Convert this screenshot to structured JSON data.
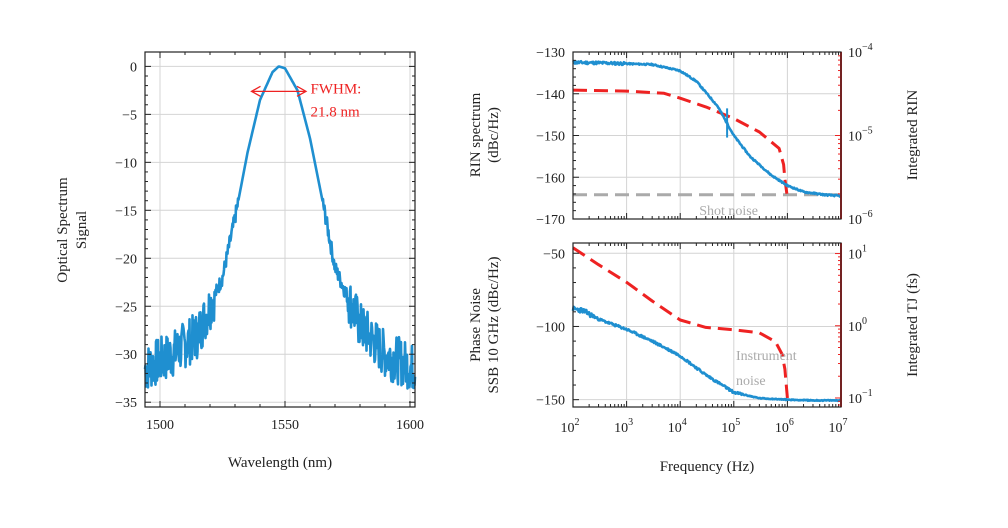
{
  "colors": {
    "blue": "#1f8fd0",
    "red": "#ee2222",
    "gray": "#aaaaaa",
    "text": "#222222"
  },
  "chart_data": [
    {
      "type": "line",
      "xlabel": "Wavelength (nm)",
      "ylabel": [
        "Optical Spectrum",
        "Signal"
      ],
      "xlim": [
        1494,
        1602
      ],
      "ylim": [
        -35.5,
        1.5
      ],
      "xticks": [
        1500,
        1550,
        1600
      ],
      "yticks": [
        0,
        -5,
        -10,
        -15,
        -20,
        -25,
        -30,
        -35
      ],
      "xtick_labels": [
        "1500",
        "1550",
        "1600"
      ],
      "ytick_labels": [
        "0",
        "−5",
        "−10",
        "−15",
        "−20",
        "−25",
        "−30",
        "−35"
      ],
      "grid": true,
      "series": [
        {
          "color": "#1f8fd0",
          "center_nm": 1547.5,
          "fwhm_nm": 21.8,
          "floor_db": -31.5,
          "x": [
            1494,
            1505,
            1515,
            1525,
            1530,
            1535,
            1540,
            1545,
            1547.5,
            1550,
            1555,
            1560,
            1565,
            1570,
            1580,
            1590,
            1602
          ],
          "y": [
            -31.5,
            -30,
            -28,
            -22,
            -15.8,
            -9,
            -3.5,
            -0.6,
            0,
            -0.2,
            -2.5,
            -7.5,
            -14,
            -21,
            -27,
            -30,
            -31.5
          ]
        }
      ],
      "annotations": [
        {
          "text": "FWHM:",
          "x": 1559,
          "y": -2.2
        },
        {
          "text": "21.8 nm",
          "x": 1559,
          "y": -4.6
        }
      ],
      "fwhm_arrow": {
        "x1": 1536.6,
        "x2": 1558.4,
        "y": -2.6
      }
    },
    {
      "type": "line",
      "xlabel": "",
      "ylabel": [
        "RIN spectrum",
        "(dBc/Hz)"
      ],
      "ylabel_right": "Integrated RIN",
      "xscale": "log",
      "xlim": [
        100,
        10000000
      ],
      "ylim": [
        -170,
        -130
      ],
      "yticks": [
        -130,
        -140,
        -150,
        -160,
        -170
      ],
      "ytick_labels": [
        "−130",
        "−140",
        "−150",
        "−160",
        "−170"
      ],
      "y2scale": "log",
      "y2lim": [
        1e-06,
        0.0001
      ],
      "y2ticks": [
        1e-06,
        1e-05,
        0.0001
      ],
      "y2tick_labels": [
        [
          "10",
          "−6"
        ],
        [
          "10",
          "−5"
        ],
        [
          "10",
          "−4"
        ]
      ],
      "grid": true,
      "series": [
        {
          "color": "#1f8fd0",
          "style": "solid",
          "axis": "left",
          "x": [
            100,
            300,
            1000,
            3000,
            10000,
            20000,
            50000,
            100000,
            200000,
            500000,
            1000000,
            2000000,
            5000000,
            10000000
          ],
          "y": [
            -132.5,
            -132.6,
            -132.8,
            -133,
            -134.5,
            -137,
            -143,
            -150,
            -155,
            -159.5,
            -162,
            -163.5,
            -164.2,
            -164.5
          ],
          "spike": {
            "x": 75000,
            "y_top": -143.5,
            "y_bottom": -150.5
          }
        },
        {
          "color": "#ee2222",
          "style": "dashed",
          "axis": "right",
          "x": [
            100,
            1000,
            5000,
            10000,
            30000,
            100000,
            300000,
            700000,
            850000,
            900000,
            1000000
          ],
          "y": [
            3.5e-05,
            3.4e-05,
            3.2e-05,
            2.8e-05,
            2.2e-05,
            1.6e-05,
            1.1e-05,
            7e-06,
            4.5e-06,
            3e-06,
            1.8e-06
          ]
        },
        {
          "color": "#aaaaaa",
          "style": "dashed",
          "axis": "left",
          "x": [
            100,
            10000000
          ],
          "y": [
            -164.2,
            -164.2
          ]
        }
      ],
      "annotations": [
        {
          "text": "Shot noise",
          "x": 80000,
          "y": -167.8
        }
      ]
    },
    {
      "type": "line",
      "xlabel": "Frequency (Hz)",
      "ylabel": [
        "Phase Noise",
        "SSB 10 GHz (dBc/Hz)"
      ],
      "ylabel_right": "Integrated TJ (fs)",
      "xscale": "log",
      "xlim": [
        100,
        10000000
      ],
      "xticks": [
        100,
        1000,
        10000,
        100000,
        1000000,
        10000000
      ],
      "xtick_labels": [
        [
          "10",
          "2"
        ],
        [
          "10",
          "3"
        ],
        [
          "10",
          "4"
        ],
        [
          "10",
          "5"
        ],
        [
          "10",
          "6"
        ],
        [
          "10",
          "7"
        ]
      ],
      "ylim": [
        -155,
        -43
      ],
      "yticks": [
        -50,
        -100,
        -150
      ],
      "ytick_labels": [
        "−50",
        "−100",
        "−150"
      ],
      "y2scale": "log",
      "y2lim": [
        0.075,
        14
      ],
      "y2ticks": [
        0.1,
        1,
        10
      ],
      "y2tick_labels": [
        [
          "10",
          "−1"
        ],
        [
          "10",
          "0"
        ],
        [
          "10",
          "1"
        ]
      ],
      "grid": true,
      "series": [
        {
          "color": "#1f8fd0",
          "style": "solid",
          "axis": "left",
          "x": [
            100,
            150,
            300,
            1000,
            3000,
            10000,
            30000,
            100000,
            300000,
            1000000,
            3000000,
            10000000
          ],
          "y": [
            -88,
            -89,
            -95,
            -102,
            -110,
            -120,
            -133,
            -145,
            -149,
            -150,
            -150.5,
            -150.5
          ]
        },
        {
          "color": "#ee2222",
          "style": "dashed",
          "axis": "right",
          "x": [
            100,
            300,
            1000,
            3000,
            10000,
            30000,
            100000,
            300000,
            600000,
            800000,
            900000,
            1000000
          ],
          "y": [
            12,
            7,
            4,
            2.2,
            1.2,
            0.95,
            0.88,
            0.8,
            0.6,
            0.4,
            0.25,
            0.1
          ]
        }
      ],
      "annotations": [
        {
          "text": "Instrument",
          "x": 110000,
          "y": -123
        },
        {
          "text": "noise",
          "x": 110000,
          "y": -140
        }
      ]
    }
  ]
}
